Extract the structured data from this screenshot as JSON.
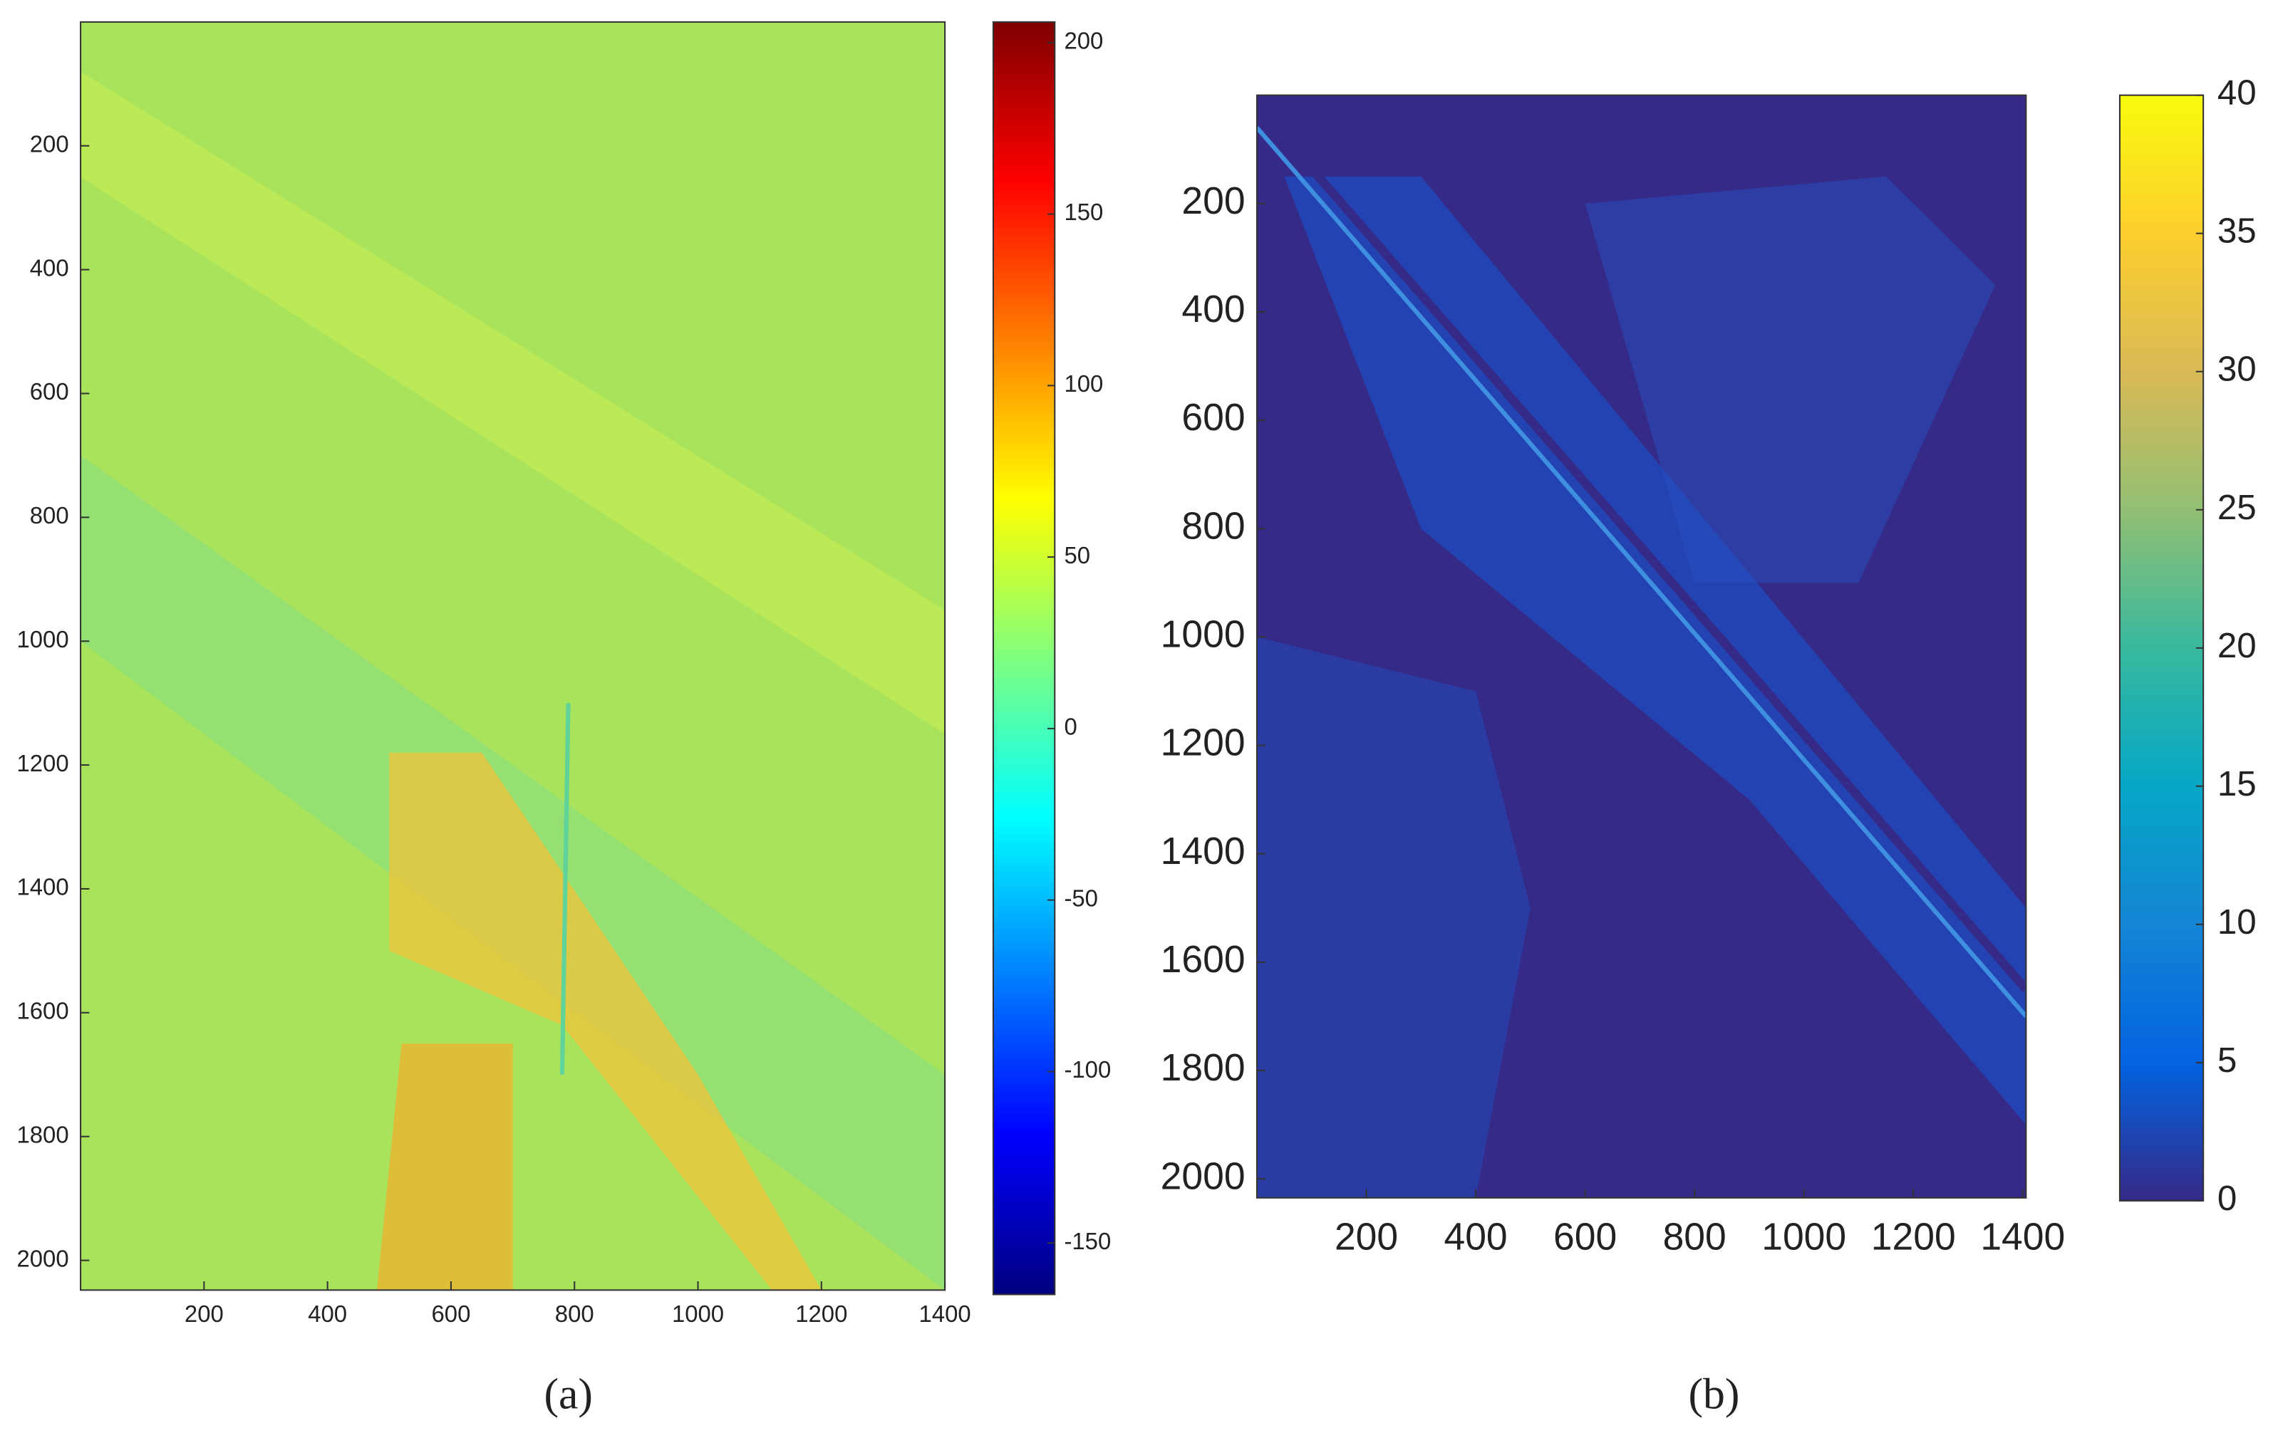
{
  "chart_data": [
    {
      "type": "heatmap",
      "caption": "(a)",
      "colormap": "jet",
      "xlim": [
        0,
        1400
      ],
      "xticks": [
        200,
        400,
        600,
        800,
        1000,
        1200,
        1400
      ],
      "ylim": [
        0,
        2048
      ],
      "yticks": [
        200,
        400,
        600,
        800,
        1000,
        1200,
        1400,
        1600,
        1800,
        2000
      ],
      "y_reversed": true,
      "clim": [
        -165,
        206
      ],
      "cticks": [
        -150,
        -100,
        -50,
        0,
        50,
        100,
        150,
        200
      ]
    },
    {
      "type": "heatmap",
      "caption": "(b)",
      "colormap": "parula",
      "xlim": [
        0,
        1406
      ],
      "xticks": [
        200,
        400,
        600,
        800,
        1000,
        1200,
        1400
      ],
      "ylim": [
        0,
        2035
      ],
      "yticks": [
        200,
        400,
        600,
        800,
        1000,
        1200,
        1400,
        1600,
        1800,
        2000
      ],
      "y_reversed": true,
      "clim": [
        0,
        40
      ],
      "cticks": [
        0,
        5,
        10,
        15,
        20,
        25,
        30,
        35,
        40
      ]
    }
  ]
}
